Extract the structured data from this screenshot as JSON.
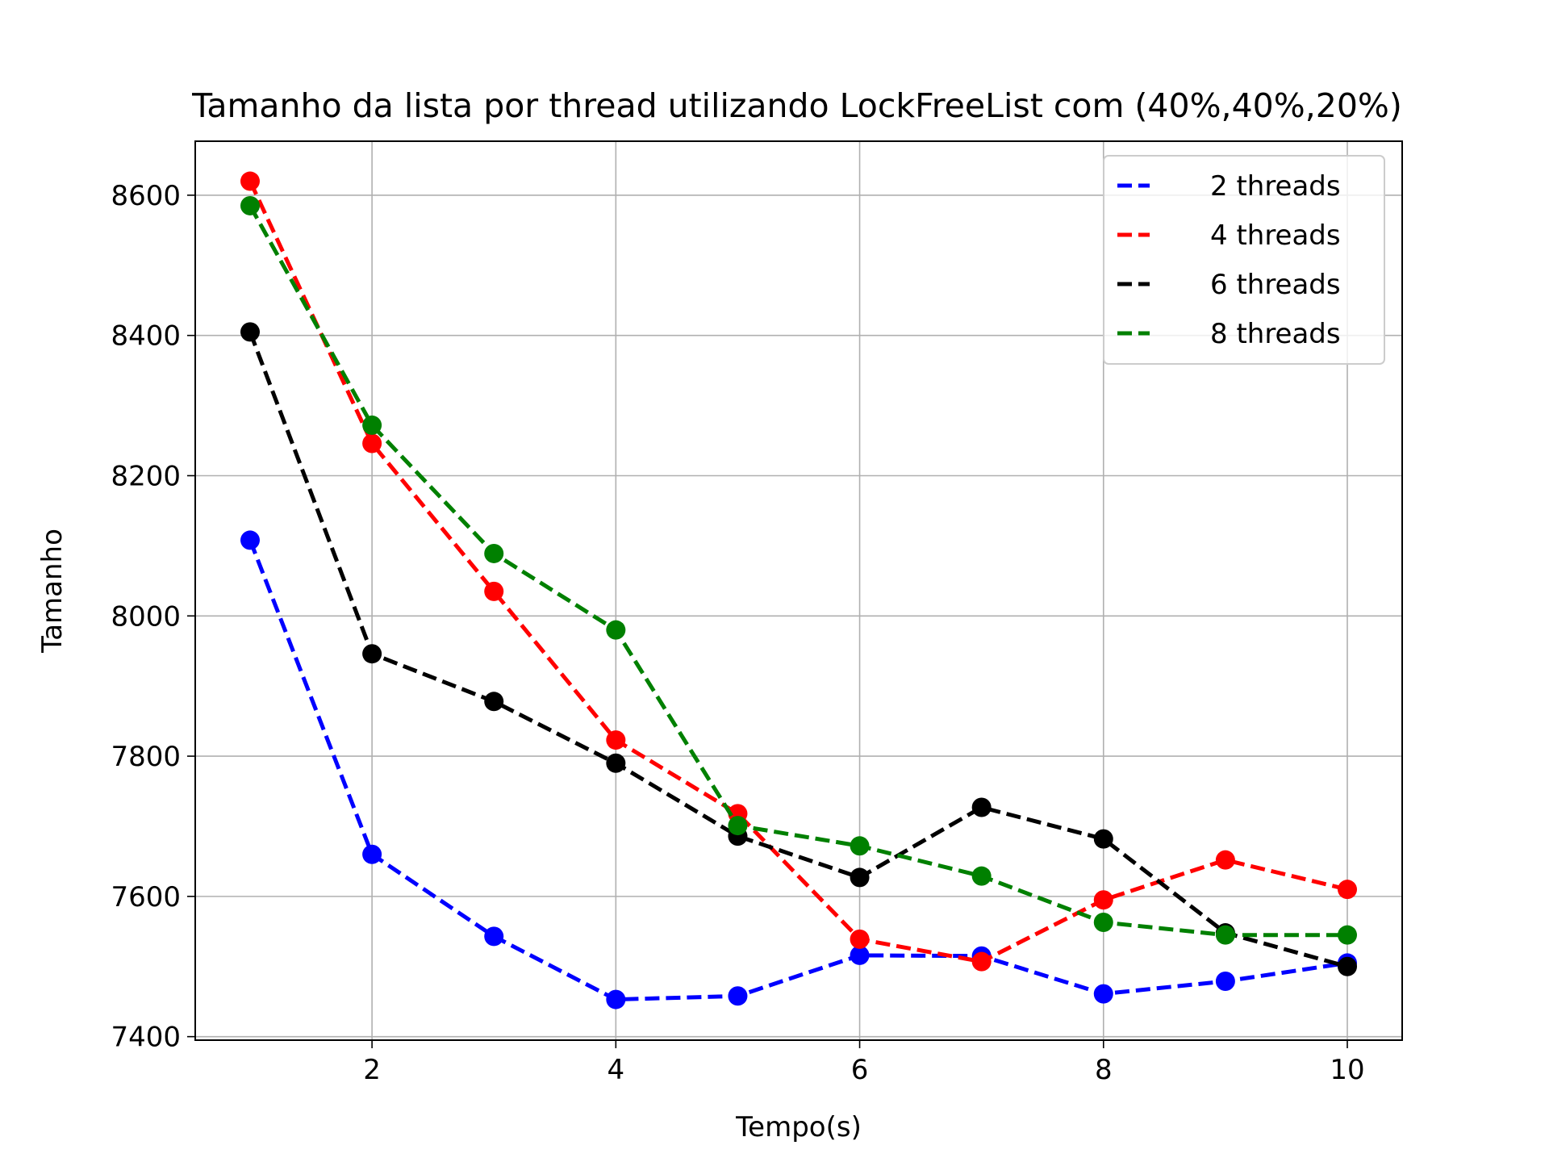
{
  "chart_data": {
    "type": "line",
    "title": "Tamanho da lista por thread utilizando LockFreeList com (40%,40%,20%)",
    "xlabel": "Tempo(s)",
    "ylabel": "Tamanho",
    "x": [
      1,
      2,
      3,
      4,
      5,
      6,
      7,
      8,
      9,
      10
    ],
    "xlim": [
      0.55,
      10.45
    ],
    "ylim": [
      7395,
      8677
    ],
    "xticks": [
      2,
      4,
      6,
      8,
      10
    ],
    "yticks": [
      7400,
      7600,
      7800,
      8000,
      8200,
      8400,
      8600
    ],
    "grid": true,
    "legend_position": "top-right",
    "series": [
      {
        "name": "2 threads",
        "color": "#0000ff",
        "linestyle": "dashed",
        "marker": "circle",
        "values": [
          8108,
          7660,
          7543,
          7453,
          7458,
          7516,
          7515,
          7461,
          7479,
          7505
        ]
      },
      {
        "name": "4 threads",
        "color": "#ff0000",
        "linestyle": "dashed",
        "marker": "circle",
        "values": [
          8620,
          8246,
          8035,
          7823,
          7718,
          7539,
          7507,
          7595,
          7652,
          7610
        ]
      },
      {
        "name": "6 threads",
        "color": "#000000",
        "linestyle": "dashed",
        "marker": "circle",
        "values": [
          8405,
          7946,
          7878,
          7790,
          7686,
          7627,
          7727,
          7682,
          7548,
          7500
        ]
      },
      {
        "name": "8 threads",
        "color": "#008000",
        "linestyle": "dashed",
        "marker": "circle",
        "values": [
          8585,
          8272,
          8089,
          7980,
          7701,
          7672,
          7629,
          7563,
          7545,
          7545
        ]
      }
    ]
  }
}
